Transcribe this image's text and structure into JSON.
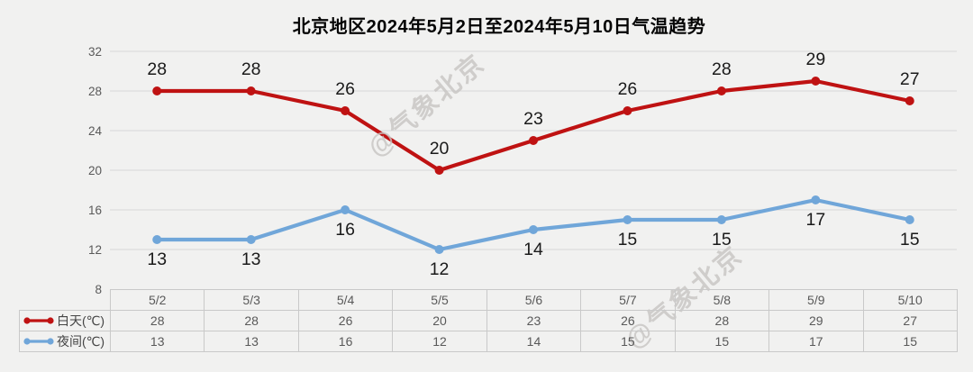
{
  "title": "北京地区2024年5月2日至2024年5月10日气温趋势",
  "watermark": {
    "text": "@气象北京"
  },
  "colors": {
    "day_series": "#bf1212",
    "night_series": "#70a6d9",
    "grid": "#d8d8d8",
    "background": "#f1f1f0",
    "table_border": "#c9c9c9",
    "data_label": "#1a1a1a",
    "axis_text": "#595959",
    "table_text": "#595959"
  },
  "chart_data": {
    "type": "line",
    "title": "北京地区2024年5月2日至2024年5月10日气温趋势",
    "categories": [
      "5/2",
      "5/3",
      "5/4",
      "5/5",
      "5/6",
      "5/7",
      "5/8",
      "5/9",
      "5/10"
    ],
    "series": [
      {
        "name": "白天(℃)",
        "color_key": "day_series",
        "values": [
          28,
          28,
          26,
          20,
          23,
          26,
          28,
          29,
          27
        ],
        "label_position": "above"
      },
      {
        "name": "夜间(℃)",
        "color_key": "night_series",
        "values": [
          13,
          13,
          16,
          12,
          14,
          15,
          15,
          17,
          15
        ],
        "label_position": "below"
      }
    ],
    "ylim": [
      8,
      32
    ],
    "yticks": [
      32,
      28,
      24,
      20,
      16,
      12,
      8
    ],
    "grid": true,
    "legend_position": "table-left",
    "xlabel": "",
    "ylabel": ""
  }
}
